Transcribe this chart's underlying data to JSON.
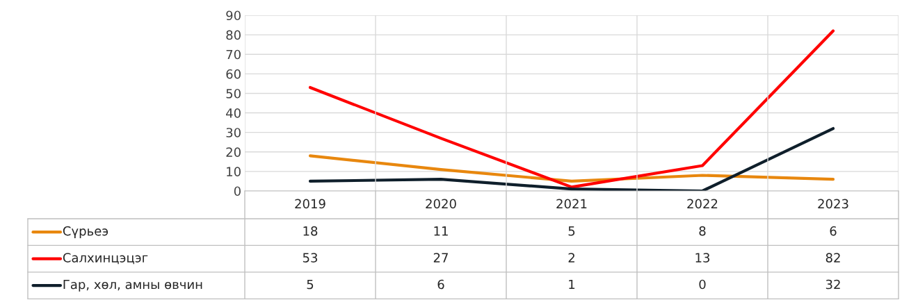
{
  "chart_data": {
    "type": "line",
    "categories": [
      "2019",
      "2020",
      "2021",
      "2022",
      "2023"
    ],
    "series": [
      {
        "name": "Сүрьеэ",
        "color": "#e8870e",
        "values": [
          18,
          11,
          5,
          8,
          6
        ]
      },
      {
        "name": "Салхинцэцэг",
        "color": "#ff0000",
        "values": [
          53,
          27,
          2,
          13,
          82
        ]
      },
      {
        "name": "Гар, хөл, амны өвчин",
        "color": "#0f1f2b",
        "values": [
          5,
          6,
          1,
          0,
          32
        ]
      }
    ],
    "ylim": [
      0,
      90
    ],
    "yticks": [
      0,
      10,
      20,
      30,
      40,
      50,
      60,
      70,
      80,
      90
    ],
    "grid": true,
    "legend": "bottom left",
    "data_labels": true,
    "marker": "none",
    "line_style": "solid"
  }
}
